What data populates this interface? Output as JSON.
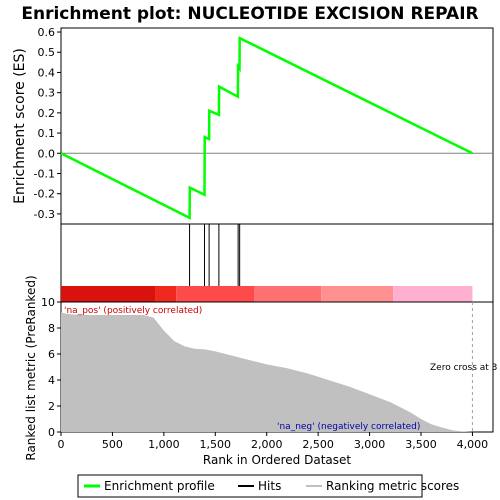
{
  "chart_data": [
    {
      "type": "line",
      "title": "Enrichment plot: NUCLEOTIDE EXCISION REPAIR",
      "ylabel": "Enrichment score (ES)",
      "xlim": [
        0,
        4200
      ],
      "ylim": [
        -0.35,
        0.62
      ],
      "yticks": [
        "-0.3",
        "-0.2",
        "-0.1",
        "0.0",
        "0.1",
        "0.2",
        "0.3",
        "0.4",
        "0.5",
        "0.6"
      ],
      "series": [
        {
          "name": "Enrichment profile",
          "color": "#00ff00",
          "x": [
            0,
            1250,
            1252,
            1395,
            1397,
            1440,
            1442,
            1535,
            1537,
            1720,
            1722,
            1735,
            1737,
            4000
          ],
          "y": [
            0.0,
            -0.32,
            -0.17,
            -0.205,
            0.08,
            0.07,
            0.21,
            0.19,
            0.33,
            0.28,
            0.43,
            0.42,
            0.57,
            0.0
          ]
        }
      ],
      "hits": [
        1250,
        1395,
        1440,
        1535,
        1722,
        1737
      ]
    },
    {
      "type": "heatmap",
      "description_colors": [
        "#d9120d",
        "#f0281e",
        "#ff4a4a",
        "#ff7070",
        "#ff9090",
        "#ffb0d0",
        "#ffc8e8"
      ],
      "segments_x": [
        0,
        920,
        1120,
        1880,
        2530,
        3230,
        4000
      ],
      "labels": [
        "'na_pos' (positively correlated)",
        "'na_neg' (negatively correlated)"
      ]
    },
    {
      "type": "area",
      "xlabel": "Rank in Ordered Dataset",
      "ylabel": "Ranked list metric (PreRanked)",
      "xlim": [
        0,
        4200
      ],
      "ylim": [
        0,
        10
      ],
      "xticks": [
        "0",
        "500",
        "1,000",
        "1,500",
        "2,000",
        "2,500",
        "3,000",
        "3,500",
        "4,000"
      ],
      "yticks": [
        "0",
        "2",
        "4",
        "6",
        "8",
        "10"
      ],
      "x": [
        0,
        50,
        100,
        200,
        400,
        600,
        800,
        900,
        950,
        1000,
        1050,
        1100,
        1150,
        1200,
        1300,
        1400,
        1500,
        1600,
        1700,
        1800,
        1900,
        2000,
        2200,
        2400,
        2600,
        2800,
        3000,
        3200,
        3300,
        3400,
        3500,
        3550,
        3600,
        3700,
        3800,
        3900,
        4000
      ],
      "values": [
        9.2,
        9.1,
        9.05,
        9.0,
        9.0,
        9.0,
        9.0,
        8.8,
        8.3,
        7.8,
        7.4,
        7.0,
        6.8,
        6.6,
        6.4,
        6.35,
        6.2,
        6.0,
        5.8,
        5.6,
        5.4,
        5.2,
        4.9,
        4.5,
        4.0,
        3.5,
        2.9,
        2.3,
        1.9,
        1.5,
        1.0,
        0.8,
        0.6,
        0.35,
        0.15,
        0.05,
        0.0
      ],
      "zero_cross_label": "Zero cross at 3",
      "zero_cross_x": 4000
    }
  ],
  "legend": {
    "items": [
      {
        "label": "Enrichment profile",
        "color": "#00ff00"
      },
      {
        "label": "Hits",
        "color": "#000000"
      },
      {
        "label": "Ranking metric scores",
        "color": "#c0c0c0"
      }
    ]
  }
}
